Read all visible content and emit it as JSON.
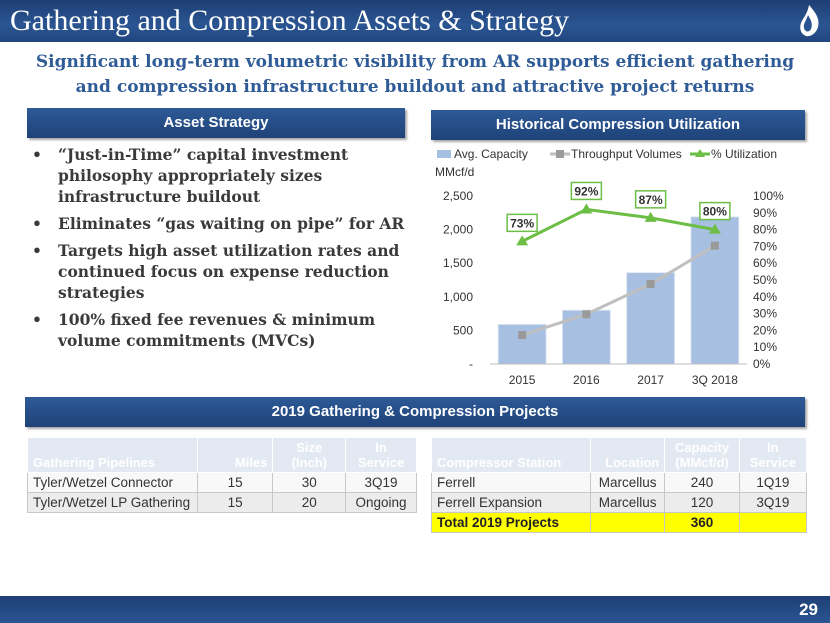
{
  "header": {
    "title": "Gathering and Compression Assets & Strategy"
  },
  "subtitle": {
    "line1": "Significant long-term volumetric visibility from AR supports efficient gathering",
    "line2": "and compression infrastructure buildout and attractive project returns"
  },
  "asset_strategy": {
    "heading": "Asset Strategy",
    "bullets": [
      "“Just-in-Time” capital investment philosophy appropriately sizes infrastructure buildout",
      "Eliminates “gas waiting on pipe” for AR",
      "Targets high asset utilization rates and continued focus on expense reduction strategies",
      "100% fixed fee revenues & minimum volume commitments (MVCs)"
    ],
    "bullet_symbol": "•"
  },
  "compression": {
    "heading": "Historical Compression Utilization"
  },
  "chart_data": {
    "type": "bar",
    "categories": [
      "2015",
      "2016",
      "2017",
      "3Q 2018"
    ],
    "series": [
      {
        "name": "Avg. Capacity",
        "type": "bar",
        "axis": "left",
        "values": [
          590,
          800,
          1360,
          2190
        ],
        "color": "#a7bfe0"
      },
      {
        "name": "Throughput Volumes",
        "type": "line",
        "axis": "left",
        "values": [
          430,
          740,
          1190,
          1760
        ],
        "color": "#bfbfbf"
      },
      {
        "name": "% Utilization",
        "type": "line",
        "axis": "right",
        "values": [
          73,
          92,
          87,
          80
        ],
        "color": "#6dbe45"
      }
    ],
    "data_labels": [
      "73%",
      "92%",
      "87%",
      "80%"
    ],
    "ylabel": "MMcf/d",
    "ylim": [
      0,
      2500
    ],
    "y_ticks": [
      "-",
      "500",
      "1,000",
      "1,500",
      "2,000",
      "2,500"
    ],
    "y2lim": [
      0,
      100
    ],
    "y2_ticks": [
      "0%",
      "10%",
      "20%",
      "30%",
      "40%",
      "50%",
      "60%",
      "70%",
      "80%",
      "90%",
      "100%"
    ],
    "legend": "top",
    "grid": false
  },
  "projects": {
    "heading": "2019 Gathering & Compression Projects"
  },
  "pipelines_table": {
    "headers": [
      "Gathering Pipelines",
      "Miles",
      "Size (Inch)",
      "In Service"
    ],
    "rows": [
      [
        "Tyler/Wetzel Connector",
        "15",
        "30",
        "3Q19"
      ],
      [
        "Tyler/Wetzel LP Gathering",
        "15",
        "20",
        "Ongoing"
      ]
    ]
  },
  "compressor_table": {
    "headers": [
      "Compressor Station",
      "Location",
      "Capacity (MMcf/d)",
      "In Service"
    ],
    "rows": [
      [
        "Ferrell",
        "Marcellus",
        "240",
        "1Q19"
      ],
      [
        "Ferrell Expansion",
        "Marcellus",
        "120",
        "3Q19"
      ]
    ],
    "total": [
      "Total 2019 Projects",
      "",
      "360",
      ""
    ]
  },
  "footer": {
    "page_number": "29"
  },
  "colors": {
    "brand_blue": "#24497f",
    "accent_yellow": "#ffff00",
    "bar": "#a7bfe0",
    "utilization": "#6dbe45"
  }
}
